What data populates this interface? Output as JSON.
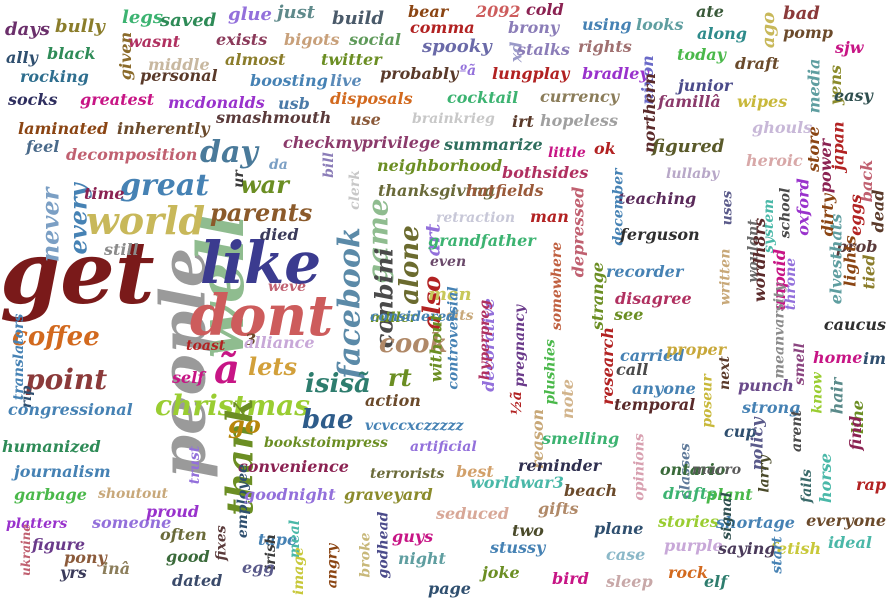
{
  "words": [
    {
      "text": "get",
      "color": "#7a1a1a"
    },
    {
      "text": "people",
      "color": "#9a9a9a"
    },
    {
      "text": "well",
      "color": "#8fbc8f"
    },
    {
      "text": "like",
      "color": "#3b3b8f"
    },
    {
      "text": "dont",
      "color": "#cd5c5c"
    },
    {
      "text": "world",
      "color": "#c8b85a"
    },
    {
      "text": "great",
      "color": "#4682b4"
    },
    {
      "text": "parents",
      "color": "#8b5a2b"
    },
    {
      "text": "day",
      "color": "#4a7a9a"
    },
    {
      "text": "war",
      "color": "#6b8e23"
    },
    {
      "text": "facebook",
      "color": "#5b8aa8"
    },
    {
      "text": "game",
      "color": "#8fbc8f"
    },
    {
      "text": "conbini",
      "color": "#4a4a4a"
    },
    {
      "text": "alone",
      "color": "#6b6b2f"
    },
    {
      "text": "art",
      "color": "#9370db"
    },
    {
      "text": "also",
      "color": "#b22222"
    },
    {
      "text": "christmas",
      "color": "#9acd32"
    },
    {
      "text": "thank",
      "color": "#6b8e23"
    },
    {
      "text": "go",
      "color": "#b8860b"
    },
    {
      "text": "bae",
      "color": "#2e5c8a"
    },
    {
      "text": "isisã",
      "color": "#2e7d6e"
    },
    {
      "text": "rt",
      "color": "#6b8e23"
    },
    {
      "text": "cook",
      "color": "#b08968"
    },
    {
      "text": "coffee",
      "color": "#d2691e"
    },
    {
      "text": "point",
      "color": "#8b3a3a"
    },
    {
      "text": "lets",
      "color": "#d2a03a"
    },
    {
      "text": "ã",
      "color": "#c71585"
    },
    {
      "text": "every",
      "color": "#4682b4"
    },
    {
      "text": "never",
      "color": "#7b9fc4"
    },
    {
      "text": "days",
      "color": "#6b2f6b"
    },
    {
      "text": "bully",
      "color": "#8b7d2b"
    },
    {
      "text": "legs",
      "color": "#3cb371"
    },
    {
      "text": "saved",
      "color": "#2e8b57"
    },
    {
      "text": "glue",
      "color": "#9370db"
    },
    {
      "text": "just",
      "color": "#5f8a8b"
    },
    {
      "text": "build",
      "color": "#4a5a6a"
    },
    {
      "text": "bear",
      "color": "#8b4513"
    },
    {
      "text": "2092",
      "color": "#cd5c5c"
    },
    {
      "text": "cold",
      "color": "#8b2252"
    },
    {
      "text": "comma",
      "color": "#b22222"
    },
    {
      "text": "brony",
      "color": "#8b7db8"
    },
    {
      "text": "using",
      "color": "#4682b4"
    },
    {
      "text": "looks",
      "color": "#5f9ea0"
    },
    {
      "text": "ate",
      "color": "#3a5a3a"
    },
    {
      "text": "ago",
      "color": "#c8b85a"
    },
    {
      "text": "bad",
      "color": "#8b3a3a"
    },
    {
      "text": "pomp",
      "color": "#6b4a2b"
    },
    {
      "text": "sjw",
      "color": "#c71585"
    },
    {
      "text": "ally",
      "color": "#2f4f6f"
    },
    {
      "text": "black",
      "color": "#2e8b57"
    },
    {
      "text": "wasnt",
      "color": "#b03060"
    },
    {
      "text": "exists",
      "color": "#8b3a5a"
    },
    {
      "text": "bigots",
      "color": "#c8a07a"
    },
    {
      "text": "social",
      "color": "#5f9a5a"
    },
    {
      "text": "spooky",
      "color": "#6a6aa8"
    },
    {
      "text": "xd",
      "color": "#9a9ac8"
    },
    {
      "text": "stalks",
      "color": "#8b7db8"
    },
    {
      "text": "rights",
      "color": "#a07070"
    },
    {
      "text": "today",
      "color": "#4ab84a"
    },
    {
      "text": "along",
      "color": "#2e8b8b"
    },
    {
      "text": "draft",
      "color": "#6a4a2b"
    },
    {
      "text": "media",
      "color": "#5f9ea0"
    },
    {
      "text": "yens",
      "color": "#8b8b2b"
    },
    {
      "text": "easy",
      "color": "#2f4f4f"
    },
    {
      "text": "given",
      "color": "#8b6b2b"
    },
    {
      "text": "middle",
      "color": "#c8b8a0"
    },
    {
      "text": "almost",
      "color": "#8b7d2b"
    },
    {
      "text": "twitter",
      "color": "#6b8e23"
    },
    {
      "text": "probably",
      "color": "#5a3a2a"
    },
    {
      "text": "ºã",
      "color": "#9370db"
    },
    {
      "text": "lungplay",
      "color": "#b22222"
    },
    {
      "text": "bradley",
      "color": "#9932cc"
    },
    {
      "text": "nixon",
      "color": "#6a6ac8"
    },
    {
      "text": "junior",
      "color": "#4a4a8a"
    },
    {
      "text": "rocking",
      "color": "#2e6e8e"
    },
    {
      "text": "personal",
      "color": "#5a3a2a"
    },
    {
      "text": "boosting",
      "color": "#4682b4"
    },
    {
      "text": "live",
      "color": "#5a8ab8"
    },
    {
      "text": "wipes",
      "color": "#c8b83a"
    },
    {
      "text": "socks",
      "color": "#2f2f5f"
    },
    {
      "text": "greatest",
      "color": "#c71585"
    },
    {
      "text": "mcdonalds",
      "color": "#9932cc"
    },
    {
      "text": "usb",
      "color": "#4a7aa8"
    },
    {
      "text": "disposals",
      "color": "#d2691e"
    },
    {
      "text": "cocktail",
      "color": "#3cb371"
    },
    {
      "text": "currency",
      "color": "#8b7d5a"
    },
    {
      "text": "famillâ",
      "color": "#8b3a6b"
    },
    {
      "text": "smashmouth",
      "color": "#5a3a3a"
    },
    {
      "text": "brainkrieg",
      "color": "#c8c8c8"
    },
    {
      "text": "use",
      "color": "#8b5a3a"
    },
    {
      "text": "laminated",
      "color": "#8b4513"
    },
    {
      "text": "inherently",
      "color": "#6b4a2b"
    },
    {
      "text": "irt",
      "color": "#5a3a2a"
    },
    {
      "text": "hopeless",
      "color": "#a0a0a0"
    },
    {
      "text": "ghouls",
      "color": "#c8b8d8"
    },
    {
      "text": "feel",
      "color": "#4a6a8a"
    },
    {
      "text": "decomposition",
      "color": "#c06070"
    },
    {
      "text": "checkmyprivilege",
      "color": "#8b3a6b"
    },
    {
      "text": "summarize",
      "color": "#2e6e5e"
    },
    {
      "text": "little",
      "color": "#c71585"
    },
    {
      "text": "ok",
      "color": "#b22222"
    },
    {
      "text": "northern",
      "color": "#5a2a2a"
    },
    {
      "text": "figured",
      "color": "#5a5a2a"
    },
    {
      "text": "heroic",
      "color": "#d8a8a8"
    },
    {
      "text": "store",
      "color": "#8b4513"
    },
    {
      "text": "japan",
      "color": "#b22222"
    },
    {
      "text": "da",
      "color": "#7b9fc4"
    },
    {
      "text": "bill",
      "color": "#8b7db8"
    },
    {
      "text": "neighborhood",
      "color": "#6b8e23"
    },
    {
      "text": "lullaby",
      "color": "#b8a8c8"
    },
    {
      "text": "power",
      "color": "#8b2252"
    },
    {
      "text": "back",
      "color": "#c06070"
    },
    {
      "text": "ur",
      "color": "#3a3a3a"
    },
    {
      "text": "clerk",
      "color": "#c8c8c8"
    },
    {
      "text": "thanksgiving",
      "color": "#6a6a3a"
    },
    {
      "text": "bothsides",
      "color": "#b03060"
    },
    {
      "text": "hatfields",
      "color": "#9a5a3a"
    },
    {
      "text": "teaching",
      "color": "#5a2a5a"
    },
    {
      "text": "uses",
      "color": "#5a5a8a"
    },
    {
      "text": "school",
      "color": "#4a4a4a"
    },
    {
      "text": "eggs",
      "color": "#b22222"
    },
    {
      "text": "time",
      "color": "#8b2252"
    },
    {
      "text": "retraction",
      "color": "#c8c8d8"
    },
    {
      "text": "man",
      "color": "#b22222"
    },
    {
      "text": "december",
      "color": "#4682b4"
    },
    {
      "text": "system",
      "color": "#4ab8a8"
    },
    {
      "text": "oxford",
      "color": "#9932cc"
    },
    {
      "text": "dirty",
      "color": "#8b4513"
    },
    {
      "text": "dead",
      "color": "#5a3a2a"
    },
    {
      "text": "died",
      "color": "#3a3a5a"
    },
    {
      "text": "grandfather",
      "color": "#3cb371"
    },
    {
      "text": "depressed",
      "color": "#c06070"
    },
    {
      "text": "ferguson",
      "color": "#2f2f2f"
    },
    {
      "text": "wouldnt",
      "color": "#6b6b6b"
    },
    {
      "text": "prob",
      "color": "#5a3a3a"
    },
    {
      "text": "still",
      "color": "#8b8b8b"
    },
    {
      "text": "even",
      "color": "#6b4a6b"
    },
    {
      "text": "somewhere",
      "color": "#c06040"
    },
    {
      "text": "recorder",
      "color": "#4682b4"
    },
    {
      "text": "written",
      "color": "#c8a878"
    },
    {
      "text": "unpaid",
      "color": "#c71585"
    },
    {
      "text": "elvesthats",
      "color": "#5f9ea0"
    },
    {
      "text": "tied",
      "color": "#8b7d2b"
    },
    {
      "text": "weve",
      "color": "#c06070"
    },
    {
      "text": "men",
      "color": "#c8c85a"
    },
    {
      "text": "½ã",
      "color": "#b22222"
    },
    {
      "text": "strange",
      "color": "#6b8e23"
    },
    {
      "text": "disagree",
      "color": "#b03060"
    },
    {
      "text": "wordh8rs",
      "color": "#5a2a2a"
    },
    {
      "text": "throne",
      "color": "#9370db"
    },
    {
      "text": "lights",
      "color": "#8b4513"
    },
    {
      "text": "toast",
      "color": "#b22222"
    },
    {
      "text": "3",
      "color": "#6b4a2b"
    },
    {
      "text": "miller",
      "color": "#6b8e23"
    },
    {
      "text": "sits",
      "color": "#c8a87a"
    },
    {
      "text": "see",
      "color": "#6b8e23"
    },
    {
      "text": "meanvarsity",
      "color": "#8b8b8b"
    },
    {
      "text": "caucus",
      "color": "#2f2f2f"
    },
    {
      "text": "rip",
      "color": "#2f4f6f"
    },
    {
      "text": "alliance",
      "color": "#c8a8d8"
    },
    {
      "text": "considered",
      "color": "#4682b4"
    },
    {
      "text": "decorative",
      "color": "#9370db"
    },
    {
      "text": "pregnancy",
      "color": "#6a3a8a"
    },
    {
      "text": "note",
      "color": "#d2b48c"
    },
    {
      "text": "carried",
      "color": "#4682b4"
    },
    {
      "text": "proper",
      "color": "#c8a83a"
    },
    {
      "text": "smell",
      "color": "#8b4580"
    },
    {
      "text": "home",
      "color": "#c71585"
    },
    {
      "text": "im",
      "color": "#2f4f6f"
    },
    {
      "text": "self",
      "color": "#c71585"
    },
    {
      "text": "without",
      "color": "#6b8e23"
    },
    {
      "text": "controversial",
      "color": "#4682b4"
    },
    {
      "text": "hyperpreg",
      "color": "#b03060"
    },
    {
      "text": "reason",
      "color": "#c8a878"
    },
    {
      "text": "plushies",
      "color": "#4ab84a"
    },
    {
      "text": "research",
      "color": "#b22222"
    },
    {
      "text": "call",
      "color": "#4a4a4a"
    },
    {
      "text": "next",
      "color": "#5a3a2a"
    },
    {
      "text": "punch",
      "color": "#6a4a8a"
    },
    {
      "text": "know",
      "color": "#9acd32"
    },
    {
      "text": "hair",
      "color": "#5a8a8a"
    },
    {
      "text": "line",
      "color": "#6b8e23"
    },
    {
      "text": "translators",
      "color": "#4682b4"
    },
    {
      "text": "congressional",
      "color": "#4682b4"
    },
    {
      "text": "action",
      "color": "#6b4a2b"
    },
    {
      "text": "anyone",
      "color": "#4682b4"
    },
    {
      "text": "strong",
      "color": "#4682b4"
    },
    {
      "text": "arent",
      "color": "#4a4a4a"
    },
    {
      "text": "trust",
      "color": "#9370db"
    },
    {
      "text": "vcvccxczzzzz",
      "color": "#4682b4"
    },
    {
      "text": "temporal",
      "color": "#5a2a2a"
    },
    {
      "text": "poseur",
      "color": "#c8b83a"
    },
    {
      "text": "cup",
      "color": "#2f4f6f"
    },
    {
      "text": "find",
      "color": "#8b2252"
    },
    {
      "text": "humanized",
      "color": "#2e8b57"
    },
    {
      "text": "bookstoimpress",
      "color": "#6b8e23"
    },
    {
      "text": "artificial",
      "color": "#9370db"
    },
    {
      "text": "smelling",
      "color": "#3cb371"
    },
    {
      "text": "opinions",
      "color": "#d8a0b0"
    },
    {
      "text": "classes",
      "color": "#5f7a9a"
    },
    {
      "text": "policy",
      "color": "#5a5a8a"
    },
    {
      "text": "horse",
      "color": "#4ab8a8"
    },
    {
      "text": "journalism",
      "color": "#4682b4"
    },
    {
      "text": "convenience",
      "color": "#8b2252"
    },
    {
      "text": "terrorists",
      "color": "#6b6b3a"
    },
    {
      "text": "best",
      "color": "#d2a06a"
    },
    {
      "text": "reminder",
      "color": "#2f2f4f"
    },
    {
      "text": "ontario",
      "color": "#3a6a3a"
    },
    {
      "text": "macro",
      "color": "#5a5a5a"
    },
    {
      "text": "larry",
      "color": "#4a4a2a"
    },
    {
      "text": "rap",
      "color": "#b22222"
    },
    {
      "text": "garbage",
      "color": "#4ab84a"
    },
    {
      "text": "shoutout",
      "color": "#c8a87a"
    },
    {
      "text": "employee",
      "color": "#2f4f6f"
    },
    {
      "text": "goodnight",
      "color": "#9370db"
    },
    {
      "text": "graveyard",
      "color": "#8b8b2b"
    },
    {
      "text": "worldwar3",
      "color": "#4ab8a8"
    },
    {
      "text": "beach",
      "color": "#6b4a2b"
    },
    {
      "text": "drafts",
      "color": "#3cb371"
    },
    {
      "text": "plant",
      "color": "#4ab84a"
    },
    {
      "text": "fails",
      "color": "#3a6a6a"
    },
    {
      "text": "seduced",
      "color": "#d8a898"
    },
    {
      "text": "gifts",
      "color": "#b08968"
    },
    {
      "text": "stories",
      "color": "#9acd32"
    },
    {
      "text": "shortage",
      "color": "#4682b4"
    },
    {
      "text": "everyone",
      "color": "#6b4a2b"
    },
    {
      "text": "platters",
      "color": "#9932cc"
    },
    {
      "text": "someone",
      "color": "#9370db"
    },
    {
      "text": "proud",
      "color": "#9932cc"
    },
    {
      "text": "fixes",
      "color": "#5a3a3a"
    },
    {
      "text": "tape",
      "color": "#4682b4"
    },
    {
      "text": "two",
      "color": "#4a4a2a"
    },
    {
      "text": "plane",
      "color": "#2f4f6f"
    },
    {
      "text": "signal",
      "color": "#2f4f4f"
    },
    {
      "text": "fetish",
      "color": "#c8c83a"
    },
    {
      "text": "ukraine",
      "color": "#c06070"
    },
    {
      "text": "figure",
      "color": "#6a3a8a"
    },
    {
      "text": "often",
      "color": "#6b6b3a"
    },
    {
      "text": "irish",
      "color": "#3a3a3a"
    },
    {
      "text": "meal",
      "color": "#4ab8a8"
    },
    {
      "text": "guys",
      "color": "#c71585"
    },
    {
      "text": "broke",
      "color": "#c8b87a"
    },
    {
      "text": "godhead",
      "color": "#4a4a8a"
    },
    {
      "text": "stussy",
      "color": "#4682b4"
    },
    {
      "text": "case",
      "color": "#8bb8c8"
    },
    {
      "text": "purple",
      "color": "#c8a8d8"
    },
    {
      "text": "saying",
      "color": "#4a3a5a"
    },
    {
      "text": "ideal",
      "color": "#4ab8a8"
    },
    {
      "text": "start",
      "color": "#4682b4"
    },
    {
      "text": "yrs",
      "color": "#3a3a5a"
    },
    {
      "text": "pony",
      "color": "#8b5a3a"
    },
    {
      "text": "inâ",
      "color": "#8b7d5a"
    },
    {
      "text": "good",
      "color": "#3a6a3a"
    },
    {
      "text": "dated",
      "color": "#3a4a6a"
    },
    {
      "text": "egg",
      "color": "#5a5a8a"
    },
    {
      "text": "image",
      "color": "#c8c83a"
    },
    {
      "text": "angry",
      "color": "#8b4513"
    },
    {
      "text": "night",
      "color": "#5f9ea0"
    },
    {
      "text": "joke",
      "color": "#6b8e23"
    },
    {
      "text": "page",
      "color": "#2f4f6f"
    },
    {
      "text": "bird",
      "color": "#c71585"
    },
    {
      "text": "sleep",
      "color": "#c8a8a8"
    },
    {
      "text": "rock",
      "color": "#d2691e"
    },
    {
      "text": "elf",
      "color": "#2e7d6e"
    }
  ]
}
